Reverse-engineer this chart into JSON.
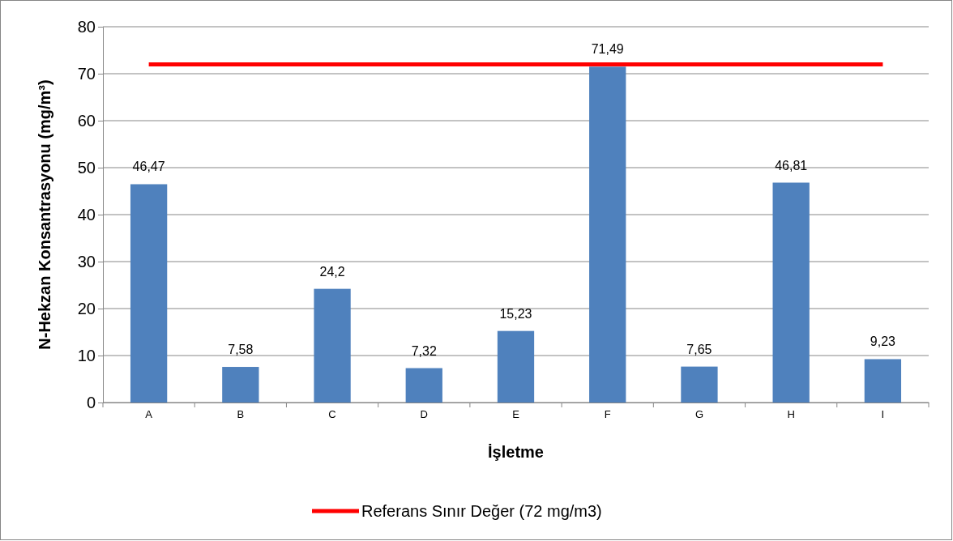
{
  "chart_data": {
    "type": "bar",
    "xlabel": "İşletme",
    "ylabel": "N-Hekzan Konsantrasyonu (mg/m³)",
    "categories": [
      "A",
      "B",
      "C",
      "D",
      "E",
      "F",
      "G",
      "H",
      "I"
    ],
    "series": [
      {
        "color": "#4f81bd",
        "values": [
          46.47,
          7.58,
          24.2,
          7.32,
          15.23,
          71.49,
          7.65,
          46.81,
          9.23
        ],
        "value_labels": [
          "46,47",
          "7,58",
          "24,2",
          "7,32",
          "15,23",
          "71,49",
          "7,65",
          "46,81",
          "9,23"
        ]
      },
      {
        "type": "line",
        "name": "Referans Sınır Değer (72 mg/m3)",
        "color": "#ff0000",
        "values": [
          72,
          72,
          72,
          72,
          72,
          72,
          72,
          72,
          72
        ],
        "marker": "none",
        "line_style": "solid"
      }
    ],
    "ylim": [
      0,
      80
    ],
    "yticks": [
      0,
      10,
      20,
      30,
      40,
      50,
      60,
      70,
      80
    ],
    "grid": "y",
    "legend": "bottom"
  }
}
